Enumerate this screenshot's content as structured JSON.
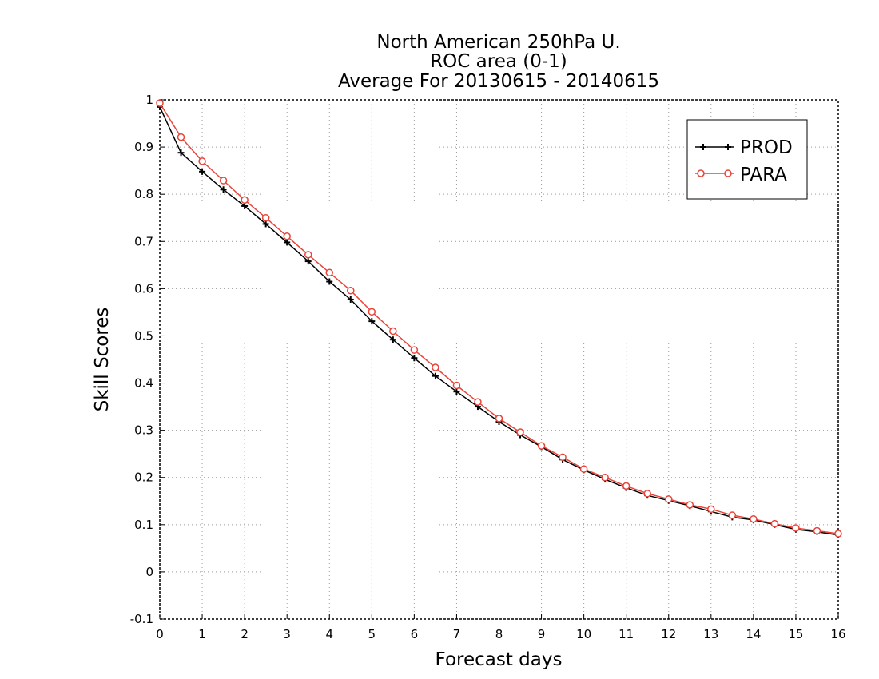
{
  "chart_data": {
    "type": "line",
    "title_lines": [
      "North American 250hPa U.",
      "ROC area (0-1)",
      "Average For 20130615 - 20140615"
    ],
    "xlabel": "Forecast days",
    "ylabel": "Skill Scores",
    "xlim": [
      0,
      16
    ],
    "ylim": [
      -0.1,
      1
    ],
    "xticks": [
      0,
      1,
      2,
      3,
      4,
      5,
      6,
      7,
      8,
      9,
      10,
      11,
      12,
      13,
      14,
      15,
      16
    ],
    "yticks": [
      -0.1,
      0,
      0.1,
      0.2,
      0.3,
      0.4,
      0.5,
      0.6,
      0.7,
      0.8,
      0.9,
      1
    ],
    "ytick_labels": [
      "-0.1",
      "0",
      "0.1",
      "0.2",
      "0.3",
      "0.4",
      "0.5",
      "0.6",
      "0.7",
      "0.8",
      "0.9",
      "1"
    ],
    "grid": true,
    "legend_position": "top-right",
    "x": [
      0,
      0.5,
      1,
      1.5,
      2,
      2.5,
      3,
      3.5,
      4,
      4.5,
      5,
      5.5,
      6,
      6.5,
      7,
      7.5,
      8,
      8.5,
      9,
      9.5,
      10,
      10.5,
      11,
      11.5,
      12,
      12.5,
      13,
      13.5,
      14,
      14.5,
      15,
      15.5,
      16
    ],
    "series": [
      {
        "name": "PROD",
        "color": "#000000",
        "marker": "plus",
        "values": [
          0.985,
          0.888,
          0.848,
          0.81,
          0.775,
          0.737,
          0.698,
          0.658,
          0.615,
          0.577,
          0.531,
          0.492,
          0.453,
          0.415,
          0.382,
          0.35,
          0.318,
          0.29,
          0.265,
          0.238,
          0.216,
          0.196,
          0.178,
          0.162,
          0.151,
          0.14,
          0.128,
          0.116,
          0.11,
          0.1,
          0.09,
          0.085,
          0.078
        ]
      },
      {
        "name": "PARA",
        "color": "#e8443a",
        "marker": "circle",
        "values": [
          0.993,
          0.921,
          0.87,
          0.829,
          0.788,
          0.75,
          0.711,
          0.672,
          0.634,
          0.596,
          0.551,
          0.51,
          0.47,
          0.433,
          0.395,
          0.36,
          0.325,
          0.296,
          0.267,
          0.243,
          0.218,
          0.2,
          0.182,
          0.166,
          0.154,
          0.142,
          0.133,
          0.12,
          0.112,
          0.102,
          0.093,
          0.087,
          0.081
        ]
      }
    ]
  }
}
